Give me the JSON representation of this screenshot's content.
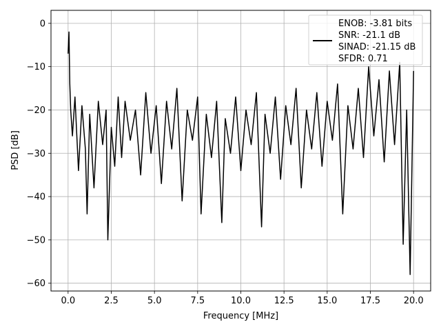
{
  "chart_data": {
    "type": "line",
    "title": "",
    "xlabel": "Frequency [MHz]",
    "ylabel": "PSD [dB]",
    "xlim": [
      -0.99,
      20.99
    ],
    "ylim": [
      -61.8,
      3.0
    ],
    "grid": true,
    "x_ticks": [
      0.0,
      2.5,
      5.0,
      7.5,
      10.0,
      12.5,
      15.0,
      17.5,
      20.0
    ],
    "x_tick_labels": [
      "0.0",
      "2.5",
      "5.0",
      "7.5",
      "10.0",
      "12.5",
      "15.0",
      "17.5",
      "20.0"
    ],
    "y_ticks": [
      0,
      -10,
      -20,
      -30,
      -40,
      -50,
      -60
    ],
    "y_tick_labels": [
      "0",
      "−10",
      "−20",
      "−30",
      "−40",
      "−50",
      "−60"
    ],
    "legend_position": "top-right",
    "legend_text": [
      "ENOB: -3.81 bits",
      "SNR: -21.1 dB",
      "SINAD: -21.15 dB",
      "SFDR: 0.71"
    ],
    "series": [
      {
        "color": "#000000",
        "x": [
          0.0,
          0.05,
          0.1,
          0.15,
          0.25,
          0.4,
          0.6,
          0.8,
          1.0,
          1.1,
          1.25,
          1.5,
          1.75,
          2.0,
          2.2,
          2.3,
          2.5,
          2.7,
          2.9,
          3.1,
          3.3,
          3.6,
          3.9,
          4.2,
          4.5,
          4.8,
          5.1,
          5.4,
          5.7,
          6.0,
          6.3,
          6.6,
          6.9,
          7.2,
          7.5,
          7.7,
          8.0,
          8.3,
          8.6,
          8.9,
          9.1,
          9.4,
          9.7,
          10.0,
          10.3,
          10.6,
          10.9,
          11.2,
          11.4,
          11.7,
          12.0,
          12.3,
          12.6,
          12.9,
          13.2,
          13.5,
          13.8,
          14.1,
          14.4,
          14.7,
          15.0,
          15.3,
          15.6,
          15.9,
          16.2,
          16.5,
          16.8,
          17.1,
          17.4,
          17.7,
          18.0,
          18.3,
          18.6,
          18.9,
          19.2,
          19.4,
          19.6,
          19.8,
          20.0
        ],
        "y": [
          -7,
          -2,
          -14,
          -20,
          -26,
          -17,
          -34,
          -19,
          -29,
          -44,
          -21,
          -38,
          -18,
          -28,
          -20,
          -50,
          -24,
          -33,
          -17,
          -31,
          -18,
          -27,
          -20,
          -35,
          -16,
          -30,
          -19,
          -37,
          -18,
          -29,
          -15,
          -41,
          -20,
          -27,
          -17,
          -44,
          -21,
          -31,
          -18,
          -46,
          -22,
          -30,
          -17,
          -34,
          -20,
          -28,
          -16,
          -47,
          -21,
          -30,
          -17,
          -36,
          -19,
          -28,
          -15,
          -38,
          -20,
          -29,
          -16,
          -33,
          -18,
          -27,
          -14,
          -44,
          -19,
          -29,
          -15,
          -31,
          -10,
          -26,
          -13,
          -32,
          -11,
          -28,
          -9,
          -51,
          -20,
          -58,
          -11
        ]
      }
    ]
  }
}
